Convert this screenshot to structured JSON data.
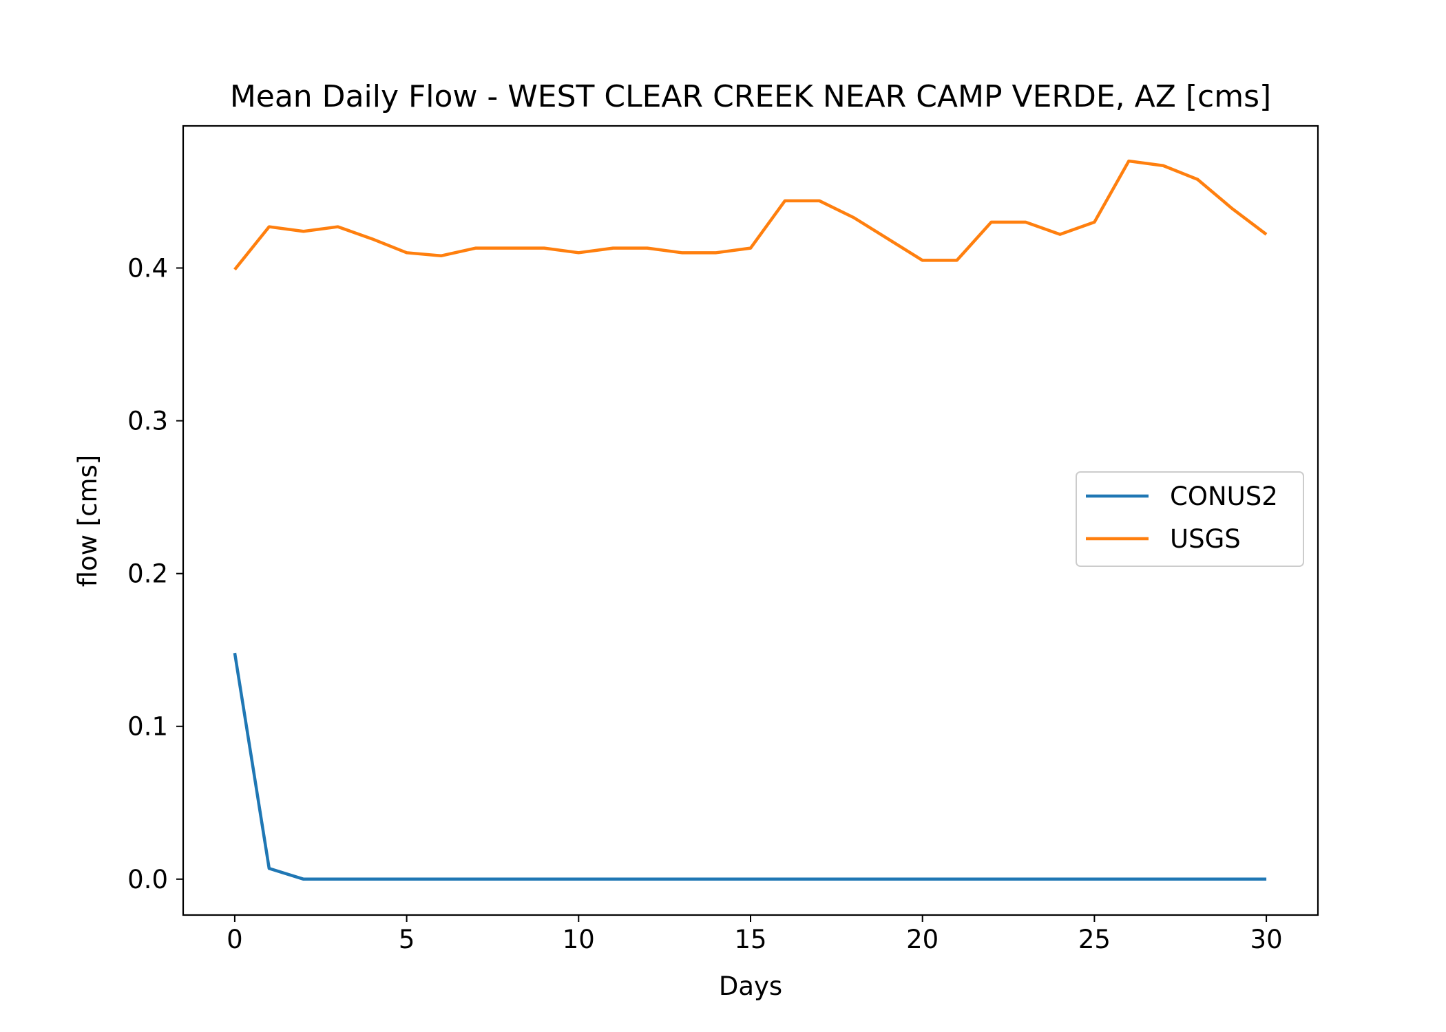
{
  "chart_data": {
    "type": "line",
    "title": "Mean Daily Flow - WEST CLEAR CREEK NEAR CAMP VERDE, AZ [cms]",
    "xlabel": "Days",
    "ylabel": "flow [cms]",
    "xlim": [
      -1.5,
      31.5
    ],
    "ylim": [
      -0.0235,
      0.493
    ],
    "x_ticks": [
      0,
      5,
      10,
      15,
      20,
      25,
      30
    ],
    "x_tick_labels": [
      "0",
      "5",
      "10",
      "15",
      "20",
      "25",
      "30"
    ],
    "y_ticks": [
      0.0,
      0.1,
      0.2,
      0.3,
      0.4
    ],
    "y_tick_labels": [
      "0.0",
      "0.1",
      "0.2",
      "0.3",
      "0.4"
    ],
    "grid": false,
    "legend_position": "center-right",
    "x": [
      0,
      1,
      2,
      3,
      4,
      5,
      6,
      7,
      8,
      9,
      10,
      11,
      12,
      13,
      14,
      15,
      16,
      17,
      18,
      19,
      20,
      21,
      22,
      23,
      24,
      25,
      26,
      27,
      28,
      29,
      30
    ],
    "series": [
      {
        "name": "CONUS2",
        "color": "#1f77b4",
        "values": [
          0.148,
          0.007,
          0.0,
          0.0,
          0.0,
          0.0,
          0.0,
          0.0,
          0.0,
          0.0,
          0.0,
          0.0,
          0.0,
          0.0,
          0.0,
          0.0,
          0.0,
          0.0,
          0.0,
          0.0,
          0.0,
          0.0,
          0.0,
          0.0,
          0.0,
          0.0,
          0.0,
          0.0,
          0.0,
          0.0,
          0.0
        ]
      },
      {
        "name": "USGS",
        "color": "#ff7f0e",
        "values": [
          0.399,
          0.427,
          0.424,
          0.427,
          0.419,
          0.41,
          0.408,
          0.413,
          0.413,
          0.413,
          0.41,
          0.413,
          0.413,
          0.41,
          0.41,
          0.413,
          0.444,
          0.444,
          0.433,
          0.419,
          0.405,
          0.405,
          0.43,
          0.43,
          0.422,
          0.43,
          0.47,
          0.467,
          0.458,
          0.439,
          0.422
        ]
      }
    ]
  }
}
